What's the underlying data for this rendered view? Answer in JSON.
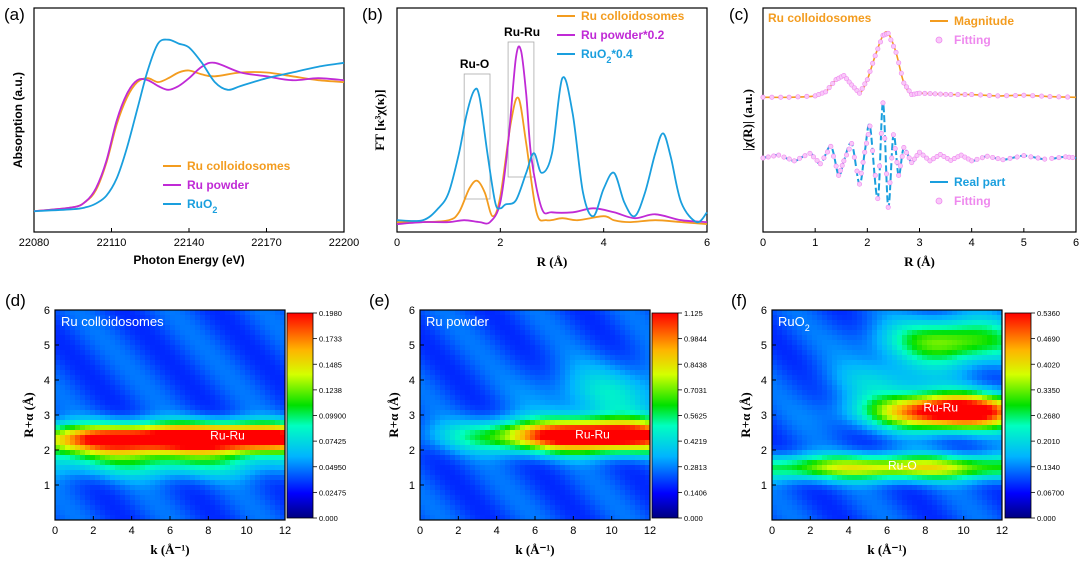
{
  "colors": {
    "orange": "#f39c1f",
    "purple": "#c02ad6",
    "blue": "#1a9fde",
    "fit": "#ee88ee"
  },
  "chart_data": [
    {
      "panel": "(a)",
      "type": "line",
      "xlabel": "Photon Energy (eV)",
      "ylabel": "Absorption (a.u.)",
      "xlim": [
        22080,
        22200
      ],
      "xticks": [
        "22080",
        "22110",
        "22140",
        "22170",
        "22200"
      ],
      "legend": "center-right",
      "series": [
        {
          "name": "Ru colloidosomes",
          "color": "orange",
          "x": [
            22080,
            22095,
            22100,
            22104,
            22108,
            22112,
            22116,
            22120,
            22124,
            22128,
            22132,
            22136,
            22140,
            22145,
            22150,
            22160,
            22170,
            22180,
            22190,
            22200
          ],
          "y": [
            0.05,
            0.07,
            0.1,
            0.16,
            0.3,
            0.5,
            0.64,
            0.72,
            0.74,
            0.72,
            0.74,
            0.77,
            0.78,
            0.76,
            0.75,
            0.77,
            0.77,
            0.75,
            0.73,
            0.72
          ]
        },
        {
          "name": "Ru powder",
          "color": "purple",
          "x": [
            22080,
            22095,
            22100,
            22104,
            22108,
            22112,
            22116,
            22120,
            22124,
            22128,
            22132,
            22136,
            22140,
            22145,
            22150,
            22160,
            22170,
            22180,
            22190,
            22200
          ],
          "y": [
            0.05,
            0.07,
            0.1,
            0.17,
            0.31,
            0.52,
            0.66,
            0.73,
            0.73,
            0.7,
            0.68,
            0.7,
            0.74,
            0.8,
            0.82,
            0.77,
            0.75,
            0.73,
            0.74,
            0.73
          ]
        },
        {
          "name": "RuO2",
          "color": "blue",
          "x": [
            22080,
            22095,
            22100,
            22104,
            22108,
            22112,
            22116,
            22120,
            22124,
            22128,
            22132,
            22136,
            22140,
            22145,
            22150,
            22155,
            22160,
            22170,
            22180,
            22190,
            22200
          ],
          "y": [
            0.05,
            0.06,
            0.07,
            0.09,
            0.13,
            0.22,
            0.38,
            0.58,
            0.78,
            0.92,
            0.94,
            0.92,
            0.9,
            0.82,
            0.72,
            0.68,
            0.7,
            0.74,
            0.77,
            0.8,
            0.82
          ]
        }
      ],
      "legend_labels": [
        "Ru colloidosomes",
        "Ru powder",
        "RuO"
      ]
    },
    {
      "panel": "(b)",
      "type": "line",
      "xlabel": "R (Å)",
      "ylabel": "FT [κ³χ(κ)]",
      "xlim": [
        0,
        6
      ],
      "xticks": [
        "0",
        "2",
        "4",
        "6"
      ],
      "annotations": [
        "Ru-O",
        "Ru-Ru"
      ],
      "legend_labels": [
        "Ru colloidosomes",
        "Ru powder*0.2",
        "RuO"
      ],
      "legend_suffix": "*0.4",
      "series": [
        {
          "name": "Ru colloidosomes",
          "color": "orange",
          "x": [
            0,
            0.5,
            1.0,
            1.2,
            1.4,
            1.55,
            1.7,
            1.85,
            2.0,
            2.2,
            2.35,
            2.5,
            2.7,
            2.9,
            3.2,
            3.5,
            4.0,
            4.2,
            4.5,
            5.0,
            5.5,
            6.0
          ],
          "y": [
            0.05,
            0.05,
            0.06,
            0.1,
            0.22,
            0.26,
            0.2,
            0.08,
            0.18,
            0.55,
            0.68,
            0.45,
            0.1,
            0.06,
            0.07,
            0.06,
            0.08,
            0.06,
            0.05,
            0.06,
            0.05,
            0.04
          ]
        },
        {
          "name": "Ru powder*0.2",
          "color": "purple",
          "x": [
            0,
            0.5,
            1.0,
            1.3,
            1.6,
            1.8,
            2.0,
            2.15,
            2.3,
            2.4,
            2.5,
            2.6,
            2.8,
            3.0,
            3.4,
            3.8,
            4.2,
            4.6,
            5.0,
            5.5,
            6.0
          ],
          "y": [
            0.04,
            0.05,
            0.05,
            0.06,
            0.05,
            0.05,
            0.15,
            0.45,
            0.88,
            0.92,
            0.7,
            0.38,
            0.12,
            0.1,
            0.1,
            0.12,
            0.1,
            0.07,
            0.09,
            0.06,
            0.05
          ]
        },
        {
          "name": "RuO2*0.4",
          "color": "blue",
          "x": [
            0,
            0.5,
            0.8,
            1.0,
            1.2,
            1.35,
            1.5,
            1.6,
            1.75,
            1.9,
            2.0,
            2.1,
            2.3,
            2.5,
            2.65,
            2.8,
            3.0,
            3.2,
            3.4,
            3.6,
            3.8,
            4.0,
            4.2,
            4.4,
            4.6,
            4.8,
            5.0,
            5.15,
            5.3,
            5.5,
            5.8,
            6.0
          ],
          "y": [
            0.06,
            0.06,
            0.12,
            0.2,
            0.4,
            0.6,
            0.72,
            0.68,
            0.4,
            0.15,
            0.12,
            0.14,
            0.16,
            0.3,
            0.4,
            0.3,
            0.4,
            0.78,
            0.6,
            0.2,
            0.08,
            0.22,
            0.3,
            0.15,
            0.08,
            0.2,
            0.4,
            0.5,
            0.38,
            0.15,
            0.05,
            0.1
          ]
        }
      ]
    },
    {
      "panel": "(c)",
      "type": "line",
      "xlabel": "R (Å)",
      "ylabel": "|χ(R)| (a.u.)",
      "xlim": [
        0,
        6
      ],
      "xticks": [
        "0",
        "1",
        "2",
        "3",
        "4",
        "5",
        "6"
      ],
      "title": "Ru colloidosomes",
      "legend_labels": [
        "Magnitude",
        "Fitting",
        "Real part",
        "Fitting"
      ],
      "magnitude": {
        "x": [
          0,
          0.5,
          1.0,
          1.2,
          1.4,
          1.55,
          1.7,
          1.85,
          2.0,
          2.15,
          2.3,
          2.4,
          2.55,
          2.7,
          2.85,
          3.0,
          3.3,
          3.6,
          4.0,
          4.5,
          5.0,
          5.5,
          6.0
        ],
        "y": [
          0.04,
          0.04,
          0.06,
          0.12,
          0.3,
          0.36,
          0.22,
          0.1,
          0.3,
          0.65,
          0.95,
          0.98,
          0.7,
          0.25,
          0.08,
          0.1,
          0.09,
          0.08,
          0.08,
          0.06,
          0.07,
          0.05,
          0.04
        ]
      },
      "real_part": {
        "x": [
          0,
          0.3,
          0.6,
          0.9,
          1.1,
          1.3,
          1.45,
          1.55,
          1.7,
          1.85,
          1.95,
          2.05,
          2.2,
          2.3,
          2.4,
          2.5,
          2.6,
          2.7,
          2.85,
          3.0,
          3.2,
          3.4,
          3.6,
          3.8,
          4.0,
          4.3,
          4.6,
          5.0,
          5.4,
          5.8,
          6.0
        ],
        "y": [
          0.0,
          0.05,
          -0.05,
          0.08,
          -0.1,
          0.2,
          -0.3,
          -0.05,
          0.25,
          -0.45,
          0.1,
          0.55,
          -0.7,
          0.95,
          -0.85,
          0.4,
          -0.3,
          0.18,
          -0.08,
          0.1,
          -0.05,
          0.06,
          -0.04,
          0.05,
          -0.05,
          0.03,
          -0.03,
          0.04,
          -0.02,
          0.02,
          0.0
        ]
      }
    },
    {
      "panel": "(d)",
      "type": "heatmap",
      "title": "Ru colloidosomes",
      "xlabel": "k (Å⁻¹)",
      "ylabel": "R+α (Å)",
      "xlim": [
        0,
        12
      ],
      "ylim": [
        0,
        6
      ],
      "xticks": [
        "0",
        "2",
        "4",
        "6",
        "8",
        "10",
        "12"
      ],
      "yticks": [
        "1",
        "2",
        "3",
        "4",
        "5",
        "6"
      ],
      "annotation": "Ru-Ru",
      "colorbar_ticks": [
        "0.1980",
        "0.1733",
        "0.1485",
        "0.1238",
        "0.09900",
        "0.07425",
        "0.04950",
        "0.02475",
        "0.000"
      ],
      "peaks": [
        {
          "k": 9.3,
          "R": 2.35,
          "sk": 4.5,
          "sR": 0.28,
          "a": 1.0
        },
        {
          "k": 5.5,
          "R": 1.7,
          "sk": 5.0,
          "sR": 0.35,
          "a": 0.28
        },
        {
          "k": 2,
          "R": 2.3,
          "sk": 3,
          "sR": 0.3,
          "a": 0.5
        }
      ]
    },
    {
      "panel": "(e)",
      "type": "heatmap",
      "title": "Ru powder",
      "xlabel": "k (Å⁻¹)",
      "ylabel": "R+α (Å)",
      "xlim": [
        0,
        12
      ],
      "ylim": [
        0,
        6
      ],
      "xticks": [
        "0",
        "2",
        "4",
        "6",
        "8",
        "10",
        "12"
      ],
      "yticks": [
        "1",
        "2",
        "3",
        "4",
        "5",
        "6"
      ],
      "annotation": "Ru-Ru",
      "colorbar_ticks": [
        "1.125",
        "0.9844",
        "0.8438",
        "0.7031",
        "0.5625",
        "0.4219",
        "0.2813",
        "0.1406",
        "0.000"
      ],
      "peaks": [
        {
          "k": 9.2,
          "R": 2.4,
          "sk": 4.0,
          "sR": 0.32,
          "a": 1.0
        },
        {
          "k": 10,
          "R": 3.6,
          "sk": 2.5,
          "sR": 0.6,
          "a": 0.18
        }
      ]
    },
    {
      "panel": "(f)",
      "type": "heatmap",
      "title": "RuO",
      "xlabel": "k (Å⁻¹)",
      "ylabel": "R+α (Å)",
      "xlim": [
        0,
        12
      ],
      "ylim": [
        0,
        6
      ],
      "xticks": [
        "0",
        "2",
        "4",
        "6",
        "8",
        "10",
        "12"
      ],
      "yticks": [
        "1",
        "2",
        "3",
        "4",
        "5",
        "6"
      ],
      "annotations": [
        "Ru-Ru",
        "Ru-O"
      ],
      "colorbar_ticks": [
        "0.5360",
        "0.4690",
        "0.4020",
        "0.3350",
        "0.2680",
        "0.2010",
        "0.1340",
        "0.06700",
        "0.000"
      ],
      "peaks": [
        {
          "k": 9.5,
          "R": 3.1,
          "sk": 2.8,
          "sR": 0.35,
          "a": 1.0
        },
        {
          "k": 6.5,
          "R": 1.5,
          "sk": 6.0,
          "sR": 0.25,
          "a": 0.55
        },
        {
          "k": 9.5,
          "R": 5.1,
          "sk": 2.5,
          "sR": 0.45,
          "a": 0.45
        },
        {
          "k": 6,
          "R": 4,
          "sk": 2,
          "sR": 0.4,
          "a": 0.15
        }
      ]
    }
  ]
}
